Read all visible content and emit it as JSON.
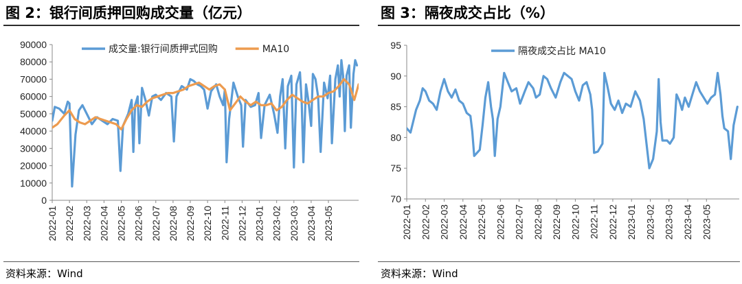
{
  "left": {
    "title": "图 2：银行间质押回购成交量（亿元）",
    "source": "资料来源：Wind"
  },
  "right": {
    "title": "图 3：隔夜成交占比（%）",
    "source": "资料来源：Wind"
  },
  "colors": {
    "blue": "#5b9bd5",
    "orange": "#ed9b4f",
    "axis": "#888888",
    "rule": "#2b2b2b"
  },
  "chart_data": [
    {
      "type": "line",
      "title": "",
      "xlabel": "",
      "ylabel": "",
      "ylim": [
        0,
        90000
      ],
      "yticks": [
        "0",
        "10000",
        "20000",
        "30000",
        "40000",
        "50000",
        "60000",
        "70000",
        "80000",
        "90000"
      ],
      "categories": [
        "2022-01",
        "2022-02",
        "2022-03",
        "2022-04",
        "2022-05",
        "2022-06",
        "2022-07",
        "2022-08",
        "2022-09",
        "2022-10",
        "2022-11",
        "2022-12",
        "2023-01",
        "2023-02",
        "2023-03",
        "2023-04",
        "2023-05"
      ],
      "legend_position": "top",
      "series": [
        {
          "name": "成交量:银行间质押式回购",
          "color": "#5b9bd5",
          "points": [
            [
              0.0,
              46000
            ],
            [
              0.15,
              54000
            ],
            [
              0.4,
              53000
            ],
            [
              0.7,
              50000
            ],
            [
              0.9,
              57000
            ],
            [
              1.0,
              56000
            ],
            [
              1.15,
              8000
            ],
            [
              1.35,
              38000
            ],
            [
              1.55,
              52000
            ],
            [
              1.75,
              55000
            ],
            [
              2.0,
              50000
            ],
            [
              2.3,
              44000
            ],
            [
              2.6,
              48000
            ],
            [
              2.9,
              46000
            ],
            [
              3.2,
              44000
            ],
            [
              3.5,
              47000
            ],
            [
              3.8,
              46000
            ],
            [
              3.95,
              17000
            ],
            [
              4.1,
              43000
            ],
            [
              4.4,
              50000
            ],
            [
              4.6,
              58000
            ],
            [
              4.7,
              28000
            ],
            [
              4.8,
              55000
            ],
            [
              4.95,
              60000
            ],
            [
              5.05,
              33000
            ],
            [
              5.2,
              65000
            ],
            [
              5.4,
              58000
            ],
            [
              5.6,
              49000
            ],
            [
              5.8,
              60000
            ],
            [
              6.0,
              61000
            ],
            [
              6.3,
              58000
            ],
            [
              6.6,
              62000
            ],
            [
              6.9,
              60000
            ],
            [
              7.05,
              34000
            ],
            [
              7.2,
              60000
            ],
            [
              7.5,
              66000
            ],
            [
              7.8,
              64000
            ],
            [
              8.0,
              70000
            ],
            [
              8.2,
              69000
            ],
            [
              8.4,
              67000
            ],
            [
              8.6,
              66000
            ],
            [
              8.8,
              64000
            ],
            [
              9.0,
              53000
            ],
            [
              9.2,
              63000
            ],
            [
              9.5,
              67000
            ],
            [
              9.7,
              60000
            ],
            [
              9.9,
              55000
            ],
            [
              10.0,
              64000
            ],
            [
              10.1,
              22000
            ],
            [
              10.25,
              47000
            ],
            [
              10.5,
              68000
            ],
            [
              10.75,
              60000
            ],
            [
              10.95,
              55000
            ],
            [
              11.05,
              31000
            ],
            [
              11.2,
              58000
            ],
            [
              11.5,
              54000
            ],
            [
              11.75,
              55000
            ],
            [
              11.95,
              62000
            ],
            [
              12.1,
              36000
            ],
            [
              12.3,
              55000
            ],
            [
              12.6,
              61000
            ],
            [
              12.85,
              50000
            ],
            [
              13.05,
              39000
            ],
            [
              13.2,
              60000
            ],
            [
              13.35,
              70000
            ],
            [
              13.5,
              30000
            ],
            [
              13.65,
              66000
            ],
            [
              13.85,
              72000
            ],
            [
              14.0,
              19000
            ],
            [
              14.15,
              67000
            ],
            [
              14.35,
              74000
            ],
            [
              14.45,
              57000
            ],
            [
              14.55,
              22000
            ],
            [
              14.7,
              67000
            ],
            [
              14.85,
              57000
            ],
            [
              15.0,
              43000
            ],
            [
              15.1,
              73000
            ],
            [
              15.25,
              70000
            ],
            [
              15.4,
              60000
            ],
            [
              15.55,
              28000
            ],
            [
              15.75,
              68000
            ],
            [
              15.95,
              59000
            ],
            [
              16.1,
              72000
            ],
            [
              16.2,
              33000
            ],
            [
              16.4,
              70000
            ],
            [
              16.55,
              78000
            ],
            [
              16.65,
              60000
            ],
            [
              16.75,
              81000
            ],
            [
              16.85,
              72000
            ],
            [
              16.95,
              40000
            ],
            [
              17.05,
              72000
            ],
            [
              17.2,
              78000
            ],
            [
              17.3,
              42000
            ],
            [
              17.45,
              73000
            ],
            [
              17.55,
              81000
            ],
            [
              17.65,
              78000
            ]
          ]
        },
        {
          "name": "MA10",
          "color": "#ed9b4f",
          "points": [
            [
              0.0,
              42000
            ],
            [
              0.3,
              44000
            ],
            [
              0.7,
              49000
            ],
            [
              1.0,
              52000
            ],
            [
              1.3,
              47000
            ],
            [
              1.6,
              45000
            ],
            [
              1.9,
              44000
            ],
            [
              2.2,
              46000
            ],
            [
              2.5,
              48000
            ],
            [
              2.8,
              47000
            ],
            [
              3.1,
              46000
            ],
            [
              3.4,
              45000
            ],
            [
              3.7,
              44000
            ],
            [
              4.0,
              41000
            ],
            [
              4.3,
              47000
            ],
            [
              4.6,
              52000
            ],
            [
              4.9,
              55000
            ],
            [
              5.2,
              54000
            ],
            [
              5.5,
              57000
            ],
            [
              5.8,
              59000
            ],
            [
              6.1,
              60000
            ],
            [
              6.4,
              61000
            ],
            [
              6.7,
              62000
            ],
            [
              7.0,
              62000
            ],
            [
              7.3,
              63000
            ],
            [
              7.6,
              64000
            ],
            [
              7.9,
              66000
            ],
            [
              8.2,
              67000
            ],
            [
              8.5,
              68000
            ],
            [
              8.8,
              66000
            ],
            [
              9.1,
              64000
            ],
            [
              9.4,
              66000
            ],
            [
              9.7,
              67000
            ],
            [
              10.0,
              64000
            ],
            [
              10.3,
              52000
            ],
            [
              10.6,
              56000
            ],
            [
              10.9,
              60000
            ],
            [
              11.2,
              57000
            ],
            [
              11.5,
              55000
            ],
            [
              11.8,
              57000
            ],
            [
              12.1,
              55000
            ],
            [
              12.4,
              55000
            ],
            [
              12.7,
              56000
            ],
            [
              13.0,
              52000
            ],
            [
              13.3,
              54000
            ],
            [
              13.6,
              58000
            ],
            [
              13.9,
              61000
            ],
            [
              14.2,
              59000
            ],
            [
              14.5,
              57000
            ],
            [
              14.8,
              56000
            ],
            [
              15.1,
              58000
            ],
            [
              15.4,
              60000
            ],
            [
              15.7,
              60000
            ],
            [
              16.0,
              62000
            ],
            [
              16.3,
              63000
            ],
            [
              16.6,
              66000
            ],
            [
              16.9,
              70000
            ],
            [
              17.2,
              67000
            ],
            [
              17.5,
              58000
            ],
            [
              17.75,
              67000
            ]
          ]
        }
      ]
    },
    {
      "type": "line",
      "title": "",
      "xlabel": "",
      "ylabel": "",
      "ylim": [
        70,
        95
      ],
      "yticks": [
        "70",
        "75",
        "80",
        "85",
        "90",
        "95"
      ],
      "categories": [
        "2022-01",
        "2022-02",
        "2022-03",
        "2022-04",
        "2022-05",
        "2022-06",
        "2022-07",
        "2022-08",
        "2022-09",
        "2022-10",
        "2022-11",
        "2022-12",
        "2023-01",
        "2023-02",
        "2023-03",
        "2023-04",
        "2023-05"
      ],
      "legend_position": "top",
      "series": [
        {
          "name": "隔夜成交占比 MA10",
          "color": "#5b9bd5",
          "points": [
            [
              0.0,
              81.5
            ],
            [
              0.2,
              80.8
            ],
            [
              0.5,
              84.5
            ],
            [
              0.7,
              86.0
            ],
            [
              0.85,
              88.0
            ],
            [
              1.0,
              87.5
            ],
            [
              1.2,
              86.0
            ],
            [
              1.4,
              85.5
            ],
            [
              1.6,
              84.5
            ],
            [
              1.8,
              87.5
            ],
            [
              2.0,
              89.5
            ],
            [
              2.2,
              87.5
            ],
            [
              2.4,
              86.5
            ],
            [
              2.6,
              87.8
            ],
            [
              2.8,
              86.0
            ],
            [
              3.0,
              85.5
            ],
            [
              3.2,
              84.0
            ],
            [
              3.4,
              83.5
            ],
            [
              3.5,
              81.0
            ],
            [
              3.6,
              77.0
            ],
            [
              3.75,
              77.5
            ],
            [
              3.9,
              78.0
            ],
            [
              4.05,
              82.0
            ],
            [
              4.2,
              86.5
            ],
            [
              4.35,
              89.0
            ],
            [
              4.5,
              85.0
            ],
            [
              4.6,
              83.0
            ],
            [
              4.7,
              77.0
            ],
            [
              4.85,
              83.0
            ],
            [
              5.0,
              85.0
            ],
            [
              5.2,
              90.5
            ],
            [
              5.4,
              89.0
            ],
            [
              5.6,
              87.5
            ],
            [
              5.85,
              88.0
            ],
            [
              6.05,
              85.5
            ],
            [
              6.3,
              87.5
            ],
            [
              6.5,
              89.0
            ],
            [
              6.75,
              88.0
            ],
            [
              6.9,
              86.5
            ],
            [
              7.1,
              87.0
            ],
            [
              7.3,
              90.0
            ],
            [
              7.5,
              89.5
            ],
            [
              7.7,
              88.0
            ],
            [
              7.95,
              86.5
            ],
            [
              8.2,
              89.0
            ],
            [
              8.4,
              90.5
            ],
            [
              8.6,
              90.0
            ],
            [
              8.8,
              89.5
            ],
            [
              9.0,
              87.5
            ],
            [
              9.2,
              86.0
            ],
            [
              9.4,
              88.5
            ],
            [
              9.6,
              89.0
            ],
            [
              9.8,
              87.0
            ],
            [
              9.9,
              84.5
            ],
            [
              10.0,
              77.5
            ],
            [
              10.2,
              77.7
            ],
            [
              10.45,
              79.0
            ],
            [
              10.55,
              90.5
            ],
            [
              10.7,
              88.5
            ],
            [
              10.9,
              85.5
            ],
            [
              11.1,
              84.5
            ],
            [
              11.3,
              86.0
            ],
            [
              11.5,
              84.0
            ],
            [
              11.7,
              85.5
            ],
            [
              11.95,
              85.0
            ],
            [
              12.2,
              87.5
            ],
            [
              12.45,
              86.0
            ],
            [
              12.65,
              83.0
            ],
            [
              12.8,
              79.0
            ],
            [
              12.95,
              75.0
            ],
            [
              13.15,
              76.5
            ],
            [
              13.35,
              81.0
            ],
            [
              13.45,
              89.5
            ],
            [
              13.55,
              82.5
            ],
            [
              13.65,
              79.5
            ],
            [
              13.9,
              79.5
            ],
            [
              14.05,
              79.0
            ],
            [
              14.25,
              80.0
            ],
            [
              14.4,
              87.0
            ],
            [
              14.55,
              86.0
            ],
            [
              14.7,
              84.5
            ],
            [
              14.85,
              86.5
            ],
            [
              15.05,
              85.0
            ],
            [
              15.25,
              87.0
            ],
            [
              15.45,
              89.0
            ],
            [
              15.65,
              87.5
            ],
            [
              15.85,
              86.5
            ],
            [
              16.05,
              85.5
            ],
            [
              16.25,
              86.5
            ],
            [
              16.45,
              87.0
            ],
            [
              16.6,
              90.5
            ],
            [
              16.75,
              87.0
            ],
            [
              16.85,
              83.5
            ],
            [
              16.95,
              81.5
            ],
            [
              17.15,
              81.0
            ],
            [
              17.3,
              76.5
            ],
            [
              17.45,
              82.0
            ],
            [
              17.65,
              85.0
            ]
          ]
        }
      ]
    }
  ]
}
